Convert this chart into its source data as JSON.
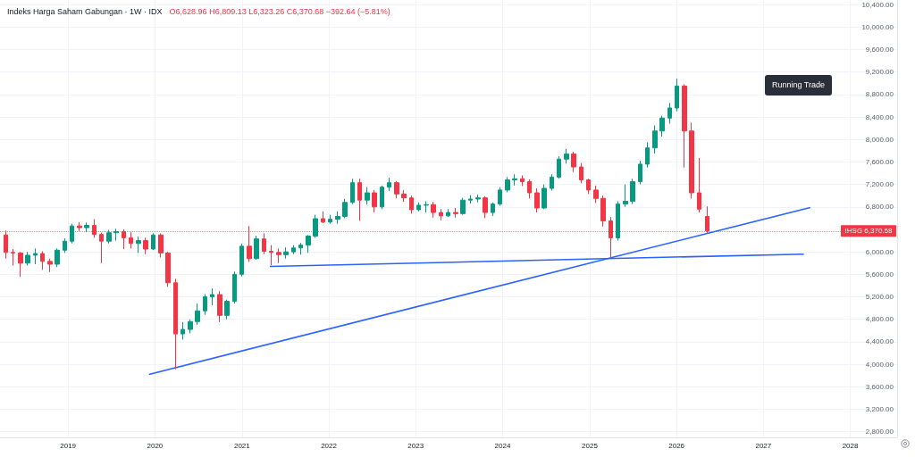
{
  "chart_data": {
    "type": "candlestick",
    "title": "Indeks Harga Saham Gabungan · 1W · IDX",
    "subtitle": "O6,628.96 H6,809.13 L6,323.26 C6,370.68 −392.64 (−5.81%)",
    "x": [
      "2018-04-14",
      "2018-05-15",
      "2018-06-15",
      "2018-07-16",
      "2018-08-16",
      "2018-09-16",
      "2018-10-17",
      "2018-11-17",
      "2018-12-18",
      "2019-01-18",
      "2019-02-18",
      "2019-03-21",
      "2019-04-21",
      "2019-05-22",
      "2019-06-22",
      "2019-07-23",
      "2019-08-23",
      "2019-09-23",
      "2019-10-24",
      "2019-11-24",
      "2019-12-25",
      "2020-01-25",
      "2020-02-25",
      "2020-03-27",
      "2020-04-27",
      "2020-05-28",
      "2020-06-28",
      "2020-07-29",
      "2020-08-29",
      "2020-09-29",
      "2020-10-30",
      "2020-11-30",
      "2020-12-31",
      "2021-01-31",
      "2021-03-03",
      "2021-04-03",
      "2021-05-04",
      "2021-06-04",
      "2021-07-05",
      "2021-08-05",
      "2021-09-05",
      "2021-10-06",
      "2021-11-06",
      "2021-12-07",
      "2022-01-07",
      "2022-02-07",
      "2022-03-10",
      "2022-04-10",
      "2022-05-11",
      "2022-06-11",
      "2022-07-12",
      "2022-08-12",
      "2022-09-12",
      "2022-10-13",
      "2022-11-13",
      "2022-12-14",
      "2023-01-14",
      "2023-02-14",
      "2023-03-17",
      "2023-04-17",
      "2023-05-18",
      "2023-06-18",
      "2023-07-19",
      "2023-08-19",
      "2023-09-19",
      "2023-10-20",
      "2023-11-20",
      "2023-12-21",
      "2024-01-21",
      "2024-02-21",
      "2024-03-23",
      "2024-04-23",
      "2024-05-24",
      "2024-06-24",
      "2024-07-25",
      "2024-08-25",
      "2024-09-25",
      "2024-10-26",
      "2024-11-26",
      "2024-12-27",
      "2025-01-27",
      "2025-02-27",
      "2025-03-30",
      "2025-04-30",
      "2025-05-31",
      "2025-07-01",
      "2025-08-01",
      "2025-09-01",
      "2025-10-02",
      "2025-11-02",
      "2025-12-03",
      "2026-01-03",
      "2026-02-03",
      "2026-03-06",
      "2026-04-06",
      "2026-05-11"
    ],
    "ohlc": [
      [
        6300,
        6380,
        5880,
        5990
      ],
      [
        5990,
        6050,
        5760,
        5980
      ],
      [
        5980,
        6000,
        5560,
        5800
      ],
      [
        5800,
        6000,
        5760,
        5940
      ],
      [
        5940,
        6060,
        5780,
        5970
      ],
      [
        5970,
        6010,
        5680,
        5830
      ],
      [
        5830,
        5880,
        5640,
        5780
      ],
      [
        5780,
        6060,
        5730,
        6030
      ],
      [
        6030,
        6240,
        5980,
        6190
      ],
      [
        6190,
        6500,
        6150,
        6460
      ],
      [
        6460,
        6530,
        6370,
        6430
      ],
      [
        6430,
        6520,
        6350,
        6470
      ],
      [
        6470,
        6580,
        6250,
        6310
      ],
      [
        6310,
        6340,
        5800,
        6190
      ],
      [
        6190,
        6390,
        6150,
        6340
      ],
      [
        6340,
        6410,
        6200,
        6360
      ],
      [
        6360,
        6400,
        6050,
        6250
      ],
      [
        6250,
        6350,
        6060,
        6150
      ],
      [
        6150,
        6270,
        5980,
        6200
      ],
      [
        6200,
        6250,
        5960,
        6050
      ],
      [
        6050,
        6330,
        6030,
        6300
      ],
      [
        6300,
        6330,
        5900,
        5980
      ],
      [
        5980,
        6000,
        5380,
        5450
      ],
      [
        5450,
        5520,
        3910,
        4540
      ],
      [
        4540,
        4750,
        4440,
        4620
      ],
      [
        4620,
        4800,
        4550,
        4760
      ],
      [
        4760,
        5080,
        4700,
        4950
      ],
      [
        4950,
        5250,
        4880,
        5200
      ],
      [
        5200,
        5350,
        5050,
        5240
      ],
      [
        5240,
        5300,
        4750,
        4870
      ],
      [
        4870,
        5150,
        4800,
        5120
      ],
      [
        5120,
        5650,
        5080,
        5600
      ],
      [
        5600,
        6150,
        5560,
        6100
      ],
      [
        6100,
        6460,
        5820,
        5880
      ],
      [
        5880,
        6290,
        5860,
        6230
      ],
      [
        6230,
        6330,
        5960,
        6010
      ],
      [
        6010,
        6120,
        5760,
        5990
      ],
      [
        5990,
        6060,
        5800,
        5950
      ],
      [
        5950,
        6080,
        5880,
        6000
      ],
      [
        6000,
        6120,
        5960,
        6070
      ],
      [
        6070,
        6160,
        5950,
        6120
      ],
      [
        6120,
        6300,
        5980,
        6280
      ],
      [
        6280,
        6660,
        6250,
        6590
      ],
      [
        6590,
        6720,
        6510,
        6530
      ],
      [
        6530,
        6660,
        6500,
        6580
      ],
      [
        6580,
        6720,
        6500,
        6630
      ],
      [
        6630,
        6940,
        6600,
        6880
      ],
      [
        6880,
        7300,
        6850,
        7230
      ],
      [
        7230,
        7300,
        6550,
        6920
      ],
      [
        6920,
        7150,
        6840,
        7050
      ],
      [
        7050,
        7100,
        6700,
        6800
      ],
      [
        6800,
        7180,
        6760,
        7150
      ],
      [
        7150,
        7320,
        7080,
        7230
      ],
      [
        7230,
        7260,
        6950,
        7030
      ],
      [
        7030,
        7100,
        6890,
        6960
      ],
      [
        6960,
        7000,
        6680,
        6750
      ],
      [
        6750,
        6880,
        6720,
        6830
      ],
      [
        6830,
        6900,
        6700,
        6840
      ],
      [
        6840,
        6890,
        6610,
        6700
      ],
      [
        6700,
        6760,
        6560,
        6640
      ],
      [
        6640,
        6760,
        6620,
        6700
      ],
      [
        6700,
        6780,
        6610,
        6680
      ],
      [
        6680,
        6960,
        6660,
        6920
      ],
      [
        6920,
        7010,
        6860,
        6940
      ],
      [
        6940,
        7020,
        6880,
        6960
      ],
      [
        6960,
        6990,
        6600,
        6700
      ],
      [
        6700,
        6880,
        6640,
        6850
      ],
      [
        6850,
        7150,
        6820,
        7100
      ],
      [
        7100,
        7330,
        7060,
        7280
      ],
      [
        7280,
        7380,
        7180,
        7300
      ],
      [
        7300,
        7360,
        7170,
        7250
      ],
      [
        7250,
        7290,
        6950,
        7050
      ],
      [
        7050,
        7130,
        6700,
        6780
      ],
      [
        6780,
        7200,
        6760,
        7130
      ],
      [
        7130,
        7380,
        7090,
        7330
      ],
      [
        7330,
        7700,
        7300,
        7650
      ],
      [
        7650,
        7830,
        7570,
        7740
      ],
      [
        7740,
        7780,
        7420,
        7510
      ],
      [
        7510,
        7580,
        7220,
        7280
      ],
      [
        7280,
        7300,
        7030,
        7100
      ],
      [
        7100,
        7180,
        6870,
        6950
      ],
      [
        6950,
        7000,
        6450,
        6550
      ],
      [
        6550,
        6620,
        5900,
        6250
      ],
      [
        6250,
        6900,
        6200,
        6850
      ],
      [
        6850,
        7200,
        6800,
        6900
      ],
      [
        6900,
        7300,
        6850,
        7250
      ],
      [
        7250,
        7620,
        7200,
        7560
      ],
      [
        7560,
        7950,
        7500,
        7850
      ],
      [
        7850,
        8250,
        7750,
        8150
      ],
      [
        8150,
        8420,
        8050,
        8380
      ],
      [
        8380,
        8650,
        8280,
        8560
      ],
      [
        8560,
        9080,
        8500,
        8950
      ],
      [
        8950,
        8980,
        7500,
        8150
      ],
      [
        8150,
        8300,
        6950,
        7050
      ],
      [
        7050,
        7670,
        6700,
        6760
      ],
      [
        6628.96,
        6809.13,
        6323.26,
        6370.68
      ]
    ],
    "colors": [
      "#f23645",
      "#f23645",
      "#f23645",
      "#089981",
      "#089981",
      "#f23645",
      "#f23645",
      "#089981",
      "#089981",
      "#089981",
      "#f23645",
      "#089981",
      "#f23645",
      "#f23645",
      "#089981",
      "#089981",
      "#f23645",
      "#f23645",
      "#089981",
      "#f23645",
      "#089981",
      "#f23645",
      "#f23645",
      "#f23645",
      "#089981",
      "#089981",
      "#089981",
      "#089981",
      "#089981",
      "#f23645",
      "#089981",
      "#089981",
      "#089981",
      "#f23645",
      "#089981",
      "#f23645",
      "#f23645",
      "#f23645",
      "#089981",
      "#089981",
      "#089981",
      "#089981",
      "#089981",
      "#f23645",
      "#089981",
      "#089981",
      "#089981",
      "#089981",
      "#f23645",
      "#089981",
      "#f23645",
      "#089981",
      "#089981",
      "#f23645",
      "#f23645",
      "#f23645",
      "#089981",
      "#089981",
      "#f23645",
      "#f23645",
      "#089981",
      "#f23645",
      "#089981",
      "#089981",
      "#089981",
      "#f23645",
      "#089981",
      "#089981",
      "#089981",
      "#089981",
      "#f23645",
      "#f23645",
      "#f23645",
      "#089981",
      "#089981",
      "#089981",
      "#089981",
      "#f23645",
      "#f23645",
      "#f23645",
      "#f23645",
      "#f23645",
      "#f23645",
      "#089981",
      "#089981",
      "#089981",
      "#089981",
      "#089981",
      "#089981",
      "#089981",
      "#089981",
      "#089981",
      "#f23645",
      "#f23645",
      "#f23645",
      "#f23645"
    ],
    "series": [
      {
        "type": "line",
        "x": [
          "2021-04-28",
          "2027-06-20"
        ],
        "values": [
          5740,
          5960
        ],
        "color": "#2962ff"
      },
      {
        "type": "line",
        "x": [
          "2019-12-07",
          "2027-07-17"
        ],
        "values": [
          3820,
          6790
        ],
        "color": "#2962ff"
      }
    ],
    "xlim": [
      "2018-03-21",
      "2028-07-16"
    ],
    "xticks": [
      "2019",
      "2020",
      "2021",
      "2022",
      "2023",
      "2024",
      "2025",
      "2026",
      "2027",
      "2028"
    ],
    "ylim": [
      2700,
      10480
    ],
    "yticks": [
      {
        "value": 2800,
        "label": "2,800.00"
      },
      {
        "value": 3200,
        "label": "3,200.00"
      },
      {
        "value": 3600,
        "label": "3,600.00"
      },
      {
        "value": 4000,
        "label": "4,000.00"
      },
      {
        "value": 4400,
        "label": "4,400.00"
      },
      {
        "value": 4800,
        "label": "4,800.00"
      },
      {
        "value": 5200,
        "label": "5,200.00"
      },
      {
        "value": 5600,
        "label": "5,600.00"
      },
      {
        "value": 6000,
        "label": "6,000.00"
      },
      {
        "value": 6800,
        "label": "6,800.00"
      },
      {
        "value": 7200,
        "label": "7,200.00"
      },
      {
        "value": 7600,
        "label": "7,600.00"
      },
      {
        "value": 8000,
        "label": "8,000.00"
      },
      {
        "value": 8400,
        "label": "8,400.00"
      },
      {
        "value": 8800,
        "label": "8,800.00"
      },
      {
        "value": 9200,
        "label": "9,200.00"
      },
      {
        "value": 9600,
        "label": "9,600.00"
      },
      {
        "value": 10000,
        "label": "10,000.00"
      },
      {
        "value": 10400,
        "label": "10,400.00"
      }
    ],
    "ref_lines": [
      {
        "axis": "y",
        "value": 6370.68,
        "label": "IHSG 6,370.68",
        "color": "#f23645",
        "line_style": "dotted"
      }
    ],
    "annotations": [
      "Running Trade"
    ],
    "grid": true
  }
}
